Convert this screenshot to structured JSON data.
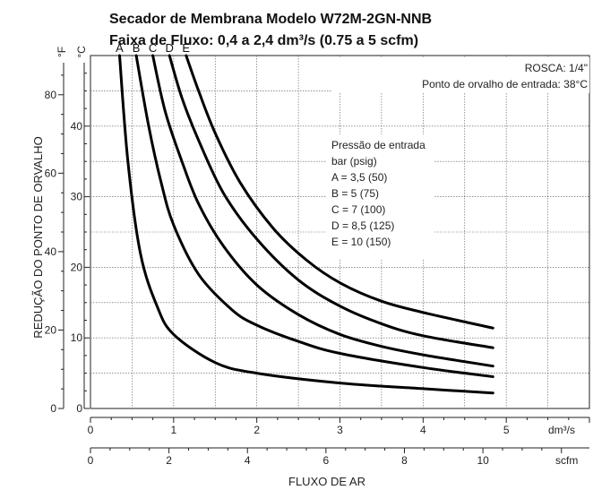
{
  "chart_data": {
    "type": "line",
    "title": "Secador de Membrana Modelo W72M-2GN-NNB",
    "subtitle": "Faixa de Fluxo: 0,4 a 2,4 dm³/s (0.75 a 5 scfm)",
    "thread_note": "ROSCA: 1/4\"",
    "inlet_dewpoint_note": "Ponto de orvalho de entrada: 38°C",
    "legend_title": [
      "Pressão de entrada",
      "bar (psig)"
    ],
    "legend_entries": [
      "A = 3,5 (50)",
      "B = 5 (75)",
      "C = 7 (100)",
      "D = 8,5 (125)",
      "E = 10 (150)"
    ],
    "xlabel": "FLUXO DE AR",
    "ylabel": "REDUÇÃO DO PONTO DE ORVALHO",
    "x_unit_primary": "dm³/s",
    "x_unit_secondary": "scfm",
    "y_unit_left": "°F",
    "y_unit_right": "°C",
    "x_primary_ticks": [
      "0",
      "1",
      "2",
      "3",
      "4",
      "5"
    ],
    "x_secondary_ticks": [
      "0",
      "2",
      "4",
      "6",
      "8",
      "10"
    ],
    "y_left_ticks": [
      "0",
      "20",
      "40",
      "60",
      "80"
    ],
    "y_right_ticks": [
      "0",
      "10",
      "20",
      "30",
      "40"
    ],
    "xlim": [
      0,
      6
    ],
    "ylim_celsius": [
      0,
      50
    ],
    "grid": true,
    "series": [
      {
        "name": "A",
        "x": [
          0.35,
          0.45,
          0.6,
          0.8,
          1.0,
          1.5,
          2.0,
          3.0,
          4.0,
          4.84
        ],
        "y": [
          50,
          35,
          22,
          14.5,
          10.5,
          6.5,
          5.0,
          3.6,
          2.8,
          2.2
        ]
      },
      {
        "name": "B",
        "x": [
          0.55,
          0.7,
          0.85,
          1.0,
          1.3,
          1.7,
          2.0,
          2.5,
          3.0,
          4.0,
          4.84
        ],
        "y": [
          50,
          40,
          32,
          26,
          19,
          14,
          11.8,
          9.5,
          7.8,
          5.8,
          4.5
        ]
      },
      {
        "name": "C",
        "x": [
          0.75,
          0.9,
          1.1,
          1.3,
          1.6,
          2.0,
          2.5,
          3.0,
          3.5,
          4.0,
          4.84
        ],
        "y": [
          50,
          42,
          35,
          29,
          23,
          17.5,
          13.3,
          10.5,
          8.8,
          7.6,
          6.0
        ]
      },
      {
        "name": "D",
        "x": [
          0.95,
          1.1,
          1.3,
          1.6,
          2.0,
          2.5,
          3.0,
          3.5,
          4.0,
          4.84
        ],
        "y": [
          50,
          44,
          38,
          30.5,
          24,
          18.2,
          14.5,
          12.0,
          10.3,
          8.6
        ]
      },
      {
        "name": "E",
        "x": [
          1.15,
          1.3,
          1.5,
          1.8,
          2.2,
          2.6,
          3.0,
          3.5,
          4.0,
          4.84
        ],
        "y": [
          50,
          45,
          39,
          32,
          25.5,
          21,
          17.8,
          15.2,
          13.6,
          11.4
        ]
      }
    ]
  }
}
